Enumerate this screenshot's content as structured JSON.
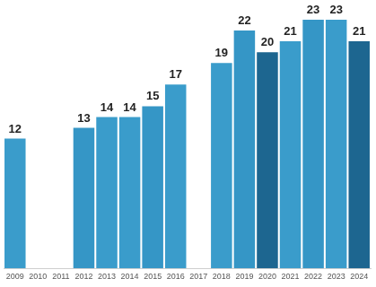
{
  "chart_data": {
    "type": "bar",
    "categories": [
      "2009",
      "2010",
      "2011",
      "2012",
      "2013",
      "2014",
      "2015",
      "2016",
      "2017",
      "2018",
      "2019",
      "2020",
      "2021",
      "2022",
      "2023",
      "2024"
    ],
    "values": [
      12,
      null,
      null,
      13,
      14,
      14,
      15,
      17,
      null,
      19,
      22,
      20,
      21,
      23,
      23,
      21
    ],
    "colors": [
      "#3a9ccb",
      "#3a9ccb",
      "#3a9ccb",
      "#3596c6",
      "#3a9ccb",
      "#3a9ccb",
      "#3596c6",
      "#3a9ccb",
      "#3a9ccb",
      "#3a9ccb",
      "#3596c6",
      "#1d6690",
      "#3a9ccb",
      "#3596c6",
      "#3a9ccb",
      "#1d6690"
    ],
    "ylim": [
      0,
      23
    ],
    "grid": false,
    "data_labels": true,
    "tick_labels": "x"
  }
}
